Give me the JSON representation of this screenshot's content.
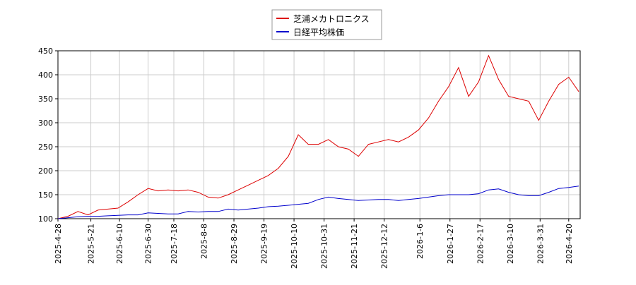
{
  "chart_data": {
    "type": "line",
    "x": [
      "2025-4-28",
      "2025-5-5",
      "2025-5-12",
      "2025-5-19",
      "2025-5-26",
      "2025-6-2",
      "2025-6-9",
      "2025-6-16",
      "2025-6-23",
      "2025-6-30",
      "2025-7-7",
      "2025-7-14",
      "2025-7-21",
      "2025-7-28",
      "2025-8-4",
      "2025-8-11",
      "2025-8-18",
      "2025-8-25",
      "2025-9-1",
      "2025-9-8",
      "2025-9-15",
      "2025-9-22",
      "2025-9-29",
      "2025-10-6",
      "2025-10-13",
      "2025-10-20",
      "2025-10-27",
      "2025-11-3",
      "2025-11-10",
      "2025-11-17",
      "2025-11-24",
      "2025-12-1",
      "2025-12-8",
      "2025-12-15",
      "2025-12-22",
      "2025-12-29",
      "2026-1-5",
      "2026-1-12",
      "2026-1-19",
      "2026-1-26",
      "2026-2-2",
      "2026-2-9",
      "2026-2-16",
      "2026-2-23",
      "2026-3-2",
      "2026-3-9",
      "2026-3-16",
      "2026-3-23",
      "2026-3-30",
      "2026-4-6",
      "2026-4-13",
      "2026-4-20",
      "2026-4-27"
    ],
    "series": [
      {
        "name": "芝浦メカトロニクス",
        "color": "#dd0000",
        "values": [
          100,
          105,
          115,
          108,
          118,
          120,
          122,
          135,
          150,
          163,
          158,
          160,
          158,
          160,
          155,
          145,
          143,
          150,
          160,
          170,
          180,
          190,
          205,
          230,
          275,
          255,
          255,
          265,
          250,
          245,
          230,
          255,
          260,
          265,
          260,
          270,
          285,
          310,
          345,
          375,
          415,
          355,
          385,
          440,
          390,
          355,
          350,
          345,
          305,
          345,
          380,
          395,
          365
        ]
      },
      {
        "name": "日経平均株価",
        "color": "#0000cc",
        "values": [
          100,
          102,
          104,
          105,
          105,
          106,
          107,
          108,
          108,
          112,
          111,
          110,
          110,
          115,
          114,
          115,
          115,
          120,
          118,
          120,
          122,
          125,
          126,
          128,
          130,
          132,
          140,
          145,
          142,
          140,
          138,
          139,
          140,
          140,
          138,
          140,
          142,
          145,
          148,
          150,
          150,
          150,
          152,
          160,
          162,
          155,
          150,
          148,
          148,
          155,
          163,
          165,
          168
        ]
      }
    ],
    "xlim": [
      "2025-4-28",
      "2026-4-28"
    ],
    "xticks": [
      "2025-4-28",
      "2025-5-21",
      "2025-6-10",
      "2025-6-30",
      "2025-7-18",
      "2025-8-8",
      "2025-8-29",
      "2025-9-19",
      "2025-10-10",
      "2025-10-31",
      "2025-11-21",
      "2025-12-12",
      "2026-1-6",
      "2026-1-27",
      "2026-2-17",
      "2026-3-10",
      "2026-3-31",
      "2026-4-20"
    ],
    "ylim": [
      100,
      450
    ],
    "yticks": [
      100,
      150,
      200,
      250,
      300,
      350,
      400,
      450
    ],
    "grid": true,
    "legend": "top"
  }
}
